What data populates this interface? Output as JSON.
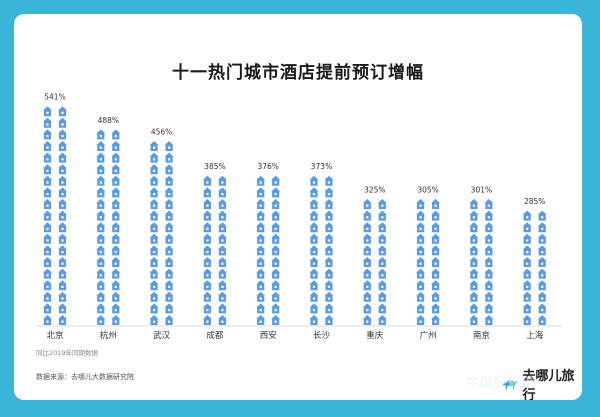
{
  "chart_data": {
    "type": "bar",
    "title": "十一热门城市酒店提前预订增幅",
    "categories": [
      "北京",
      "杭州",
      "武汉",
      "成都",
      "西安",
      "长沙",
      "重庆",
      "广州",
      "南京",
      "上海"
    ],
    "values": [
      541,
      488,
      456,
      385,
      376,
      373,
      325,
      305,
      301,
      285
    ],
    "value_labels": [
      "541%",
      "488%",
      "456%",
      "385%",
      "376%",
      "373%",
      "325%",
      "305%",
      "301%",
      "285%"
    ],
    "unit": "%",
    "mark": "stacked house icons",
    "bar_color": "#5b9be6",
    "ylim": [
      0,
      541
    ],
    "grid": false
  },
  "footnote": "同比2019年同期数据",
  "source": "数据来源：去哪儿大数据研究院",
  "brand": {
    "name": "去哪儿旅行",
    "icon": "camel-icon"
  },
  "watermark": "中国民航网"
}
